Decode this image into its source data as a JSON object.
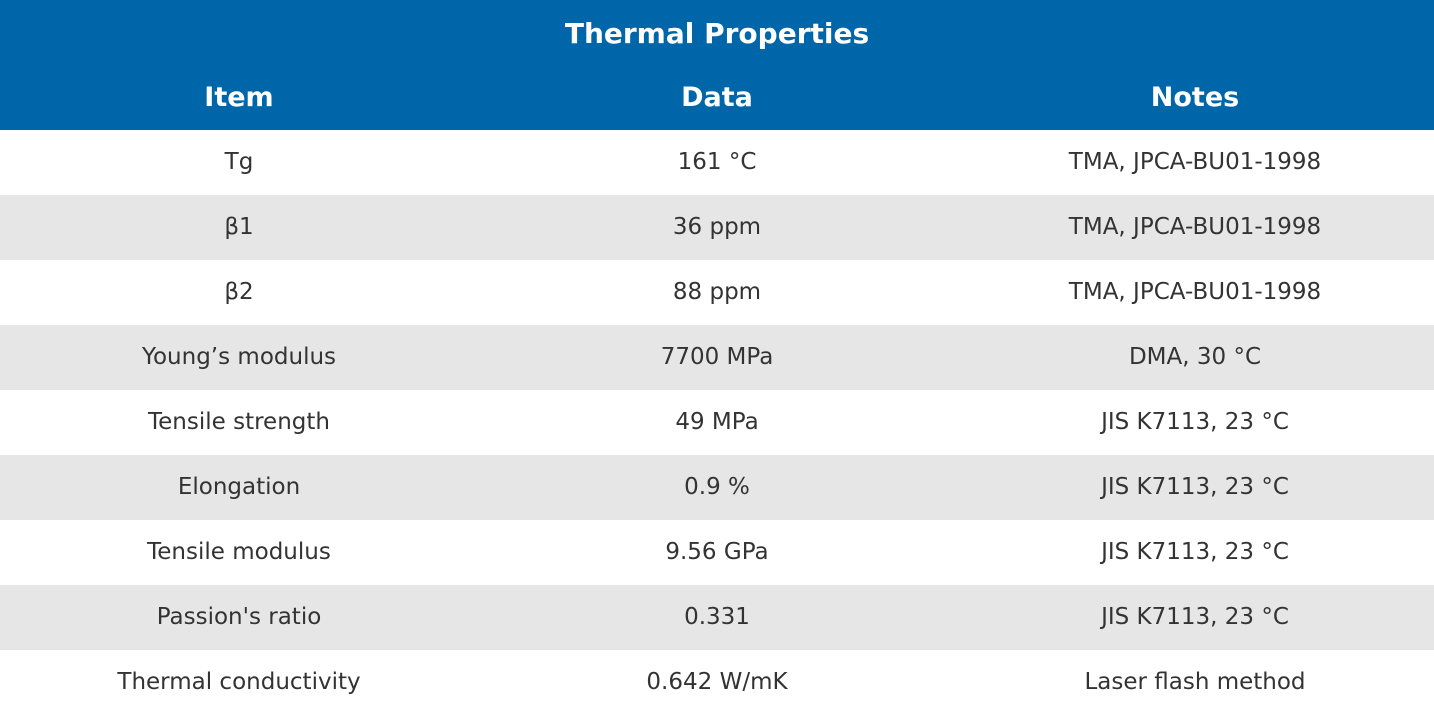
{
  "table": {
    "title": "Thermal Properties",
    "header": [
      "Item",
      "Data",
      "Notes"
    ],
    "rows": [
      [
        "Tg",
        "161 °C",
        "TMA, JPCA-BU01-1998"
      ],
      [
        "β1",
        "36 ppm",
        "TMA, JPCA-BU01-1998"
      ],
      [
        "β2",
        "88 ppm",
        "TMA, JPCA-BU01-1998"
      ],
      [
        "Young’s modulus",
        "7700 MPa",
        "DMA, 30 °C"
      ],
      [
        "Tensile strength",
        "49 MPa",
        "JIS K7113, 23 °C"
      ],
      [
        "Elongation",
        "0.9 %",
        "JIS K7113, 23 °C"
      ],
      [
        "Tensile modulus",
        "9.56 GPa",
        "JIS K7113, 23 °C"
      ],
      [
        "Passion's ratio",
        "0.331",
        "JIS K7113, 23 °C"
      ],
      [
        "Thermal conductivity",
        "0.642 W/mK",
        "Laser flash method"
      ]
    ]
  }
}
